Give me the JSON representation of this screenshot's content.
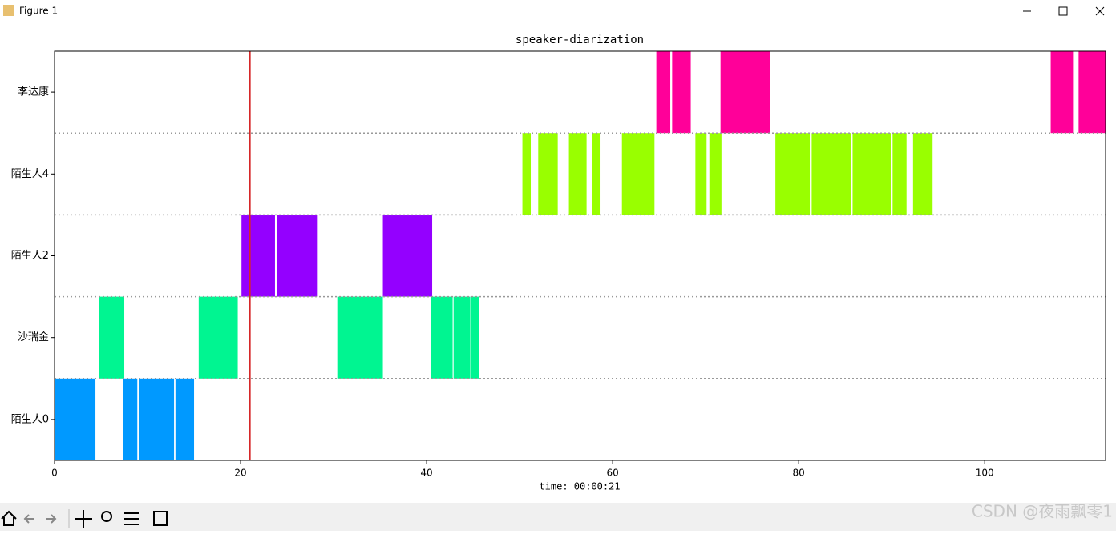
{
  "window_title": "Figure 1",
  "watermark": "CSDN @夜雨飘零1",
  "chart_data": {
    "type": "timeline",
    "title": "speaker-diarization",
    "x_label": "time: 00:00:21",
    "xlim": [
      0,
      113
    ],
    "xticks": [
      0,
      20,
      40,
      60,
      80,
      100
    ],
    "ylim": [
      0,
      5
    ],
    "yticks": [
      0.5,
      1.5,
      2.5,
      3.5,
      4.5
    ],
    "row_separators": [
      1,
      2,
      3,
      4
    ],
    "cursor": 21,
    "cursor_color": "#d62728",
    "series": [
      {
        "name": "陌生人0",
        "color": "#0099ff",
        "segments": [
          [
            0,
            4.4
          ],
          [
            7.4,
            8.9
          ],
          [
            9.05,
            12.85
          ],
          [
            13.0,
            15.0
          ]
        ]
      },
      {
        "name": "沙瑞金",
        "color": "#00f591",
        "segments": [
          [
            4.8,
            7.5
          ],
          [
            15.5,
            19.7
          ],
          [
            30.4,
            35.3
          ],
          [
            40.5,
            42.8
          ],
          [
            42.9,
            44.7
          ],
          [
            44.8,
            45.6
          ]
        ]
      },
      {
        "name": "陌生人2",
        "color": "#9400ff",
        "segments": [
          [
            20.1,
            23.7
          ],
          [
            23.9,
            28.3
          ],
          [
            35.3,
            40.6
          ]
        ]
      },
      {
        "name": "陌生人4",
        "color": "#99ff00",
        "segments": [
          [
            50.3,
            51.2
          ],
          [
            52.0,
            54.1
          ],
          [
            55.3,
            57.2
          ],
          [
            57.8,
            58.7
          ],
          [
            61.0,
            64.5
          ],
          [
            68.9,
            70.1
          ],
          [
            70.4,
            71.7
          ],
          [
            77.5,
            81.2
          ],
          [
            81.4,
            85.6
          ],
          [
            85.8,
            89.9
          ],
          [
            90.1,
            91.6
          ],
          [
            92.3,
            94.4
          ]
        ]
      },
      {
        "name": "李达康",
        "color": "#ff0099",
        "segments": [
          [
            64.7,
            66.2
          ],
          [
            66.4,
            68.4
          ],
          [
            71.6,
            76.9
          ],
          [
            107.1,
            109.5
          ],
          [
            110.1,
            113
          ]
        ]
      }
    ]
  }
}
